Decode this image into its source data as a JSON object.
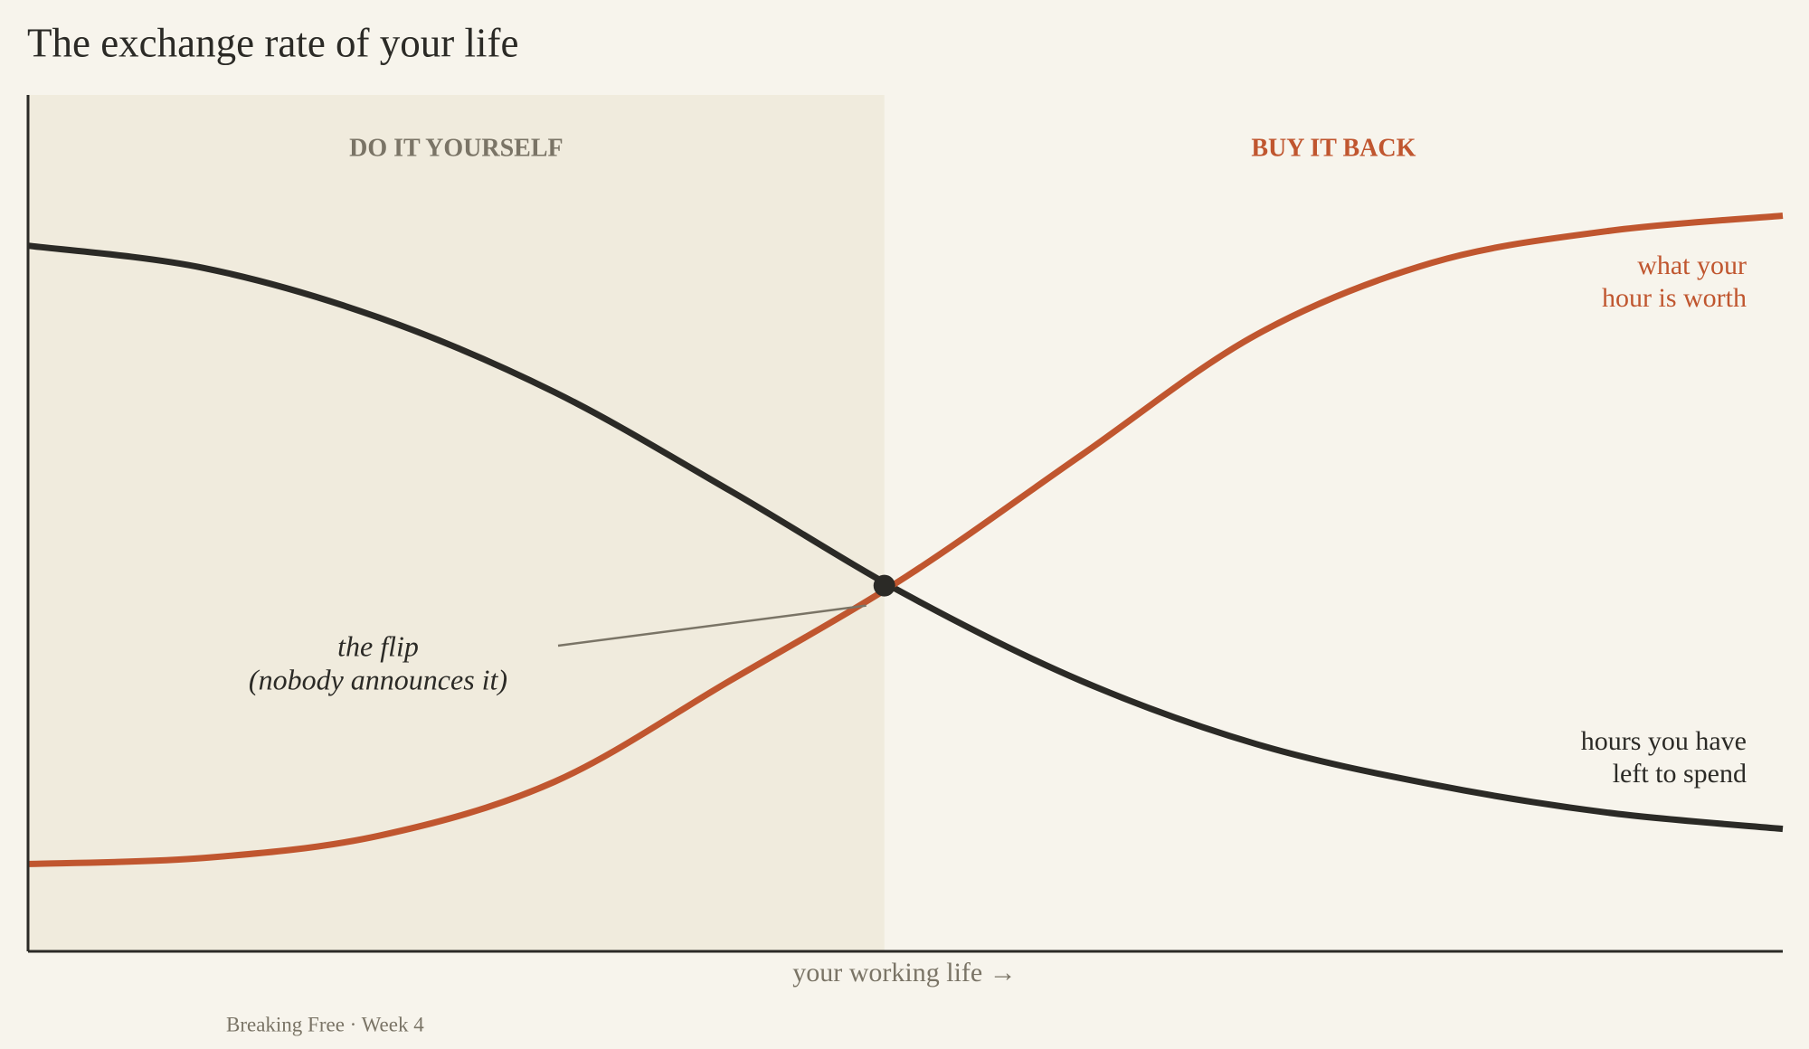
{
  "chart_data": {
    "type": "line",
    "title": "The exchange rate of your life",
    "x_label": "your working life  →",
    "footer": "Breaking Free · Week 4",
    "xlim": [
      0,
      100
    ],
    "ylim": [
      0,
      100
    ],
    "x": [
      0,
      10,
      20,
      30,
      40,
      50,
      60,
      70,
      80,
      90,
      100
    ],
    "series": [
      {
        "label": [
          "hours you have",
          "left to spend"
        ],
        "color": "#2b2a26",
        "values": [
          82.4,
          79.8,
          74.0,
          65.3,
          53.8,
          41.7,
          31.6,
          24.2,
          19.5,
          16.2,
          14.3
        ]
      },
      {
        "label": [
          "what your",
          "hour is worth"
        ],
        "color": "#c0562f",
        "values": [
          10.2,
          10.9,
          13.5,
          19.8,
          31.6,
          43.7,
          57.9,
          72.0,
          80.4,
          84.1,
          85.9
        ]
      }
    ],
    "regions": [
      {
        "label": "DO IT YOURSELF",
        "from": 0,
        "to": 48.8,
        "color": "#7a7466",
        "fill": "#f0ebdd"
      },
      {
        "label": "BUY IT BACK",
        "from": 48.8,
        "to": 100,
        "color": "#c0562f"
      }
    ],
    "annotation": {
      "lines": [
        "the flip",
        "(nobody announces it)"
      ],
      "x": 48.8,
      "y": 42.7
    }
  }
}
